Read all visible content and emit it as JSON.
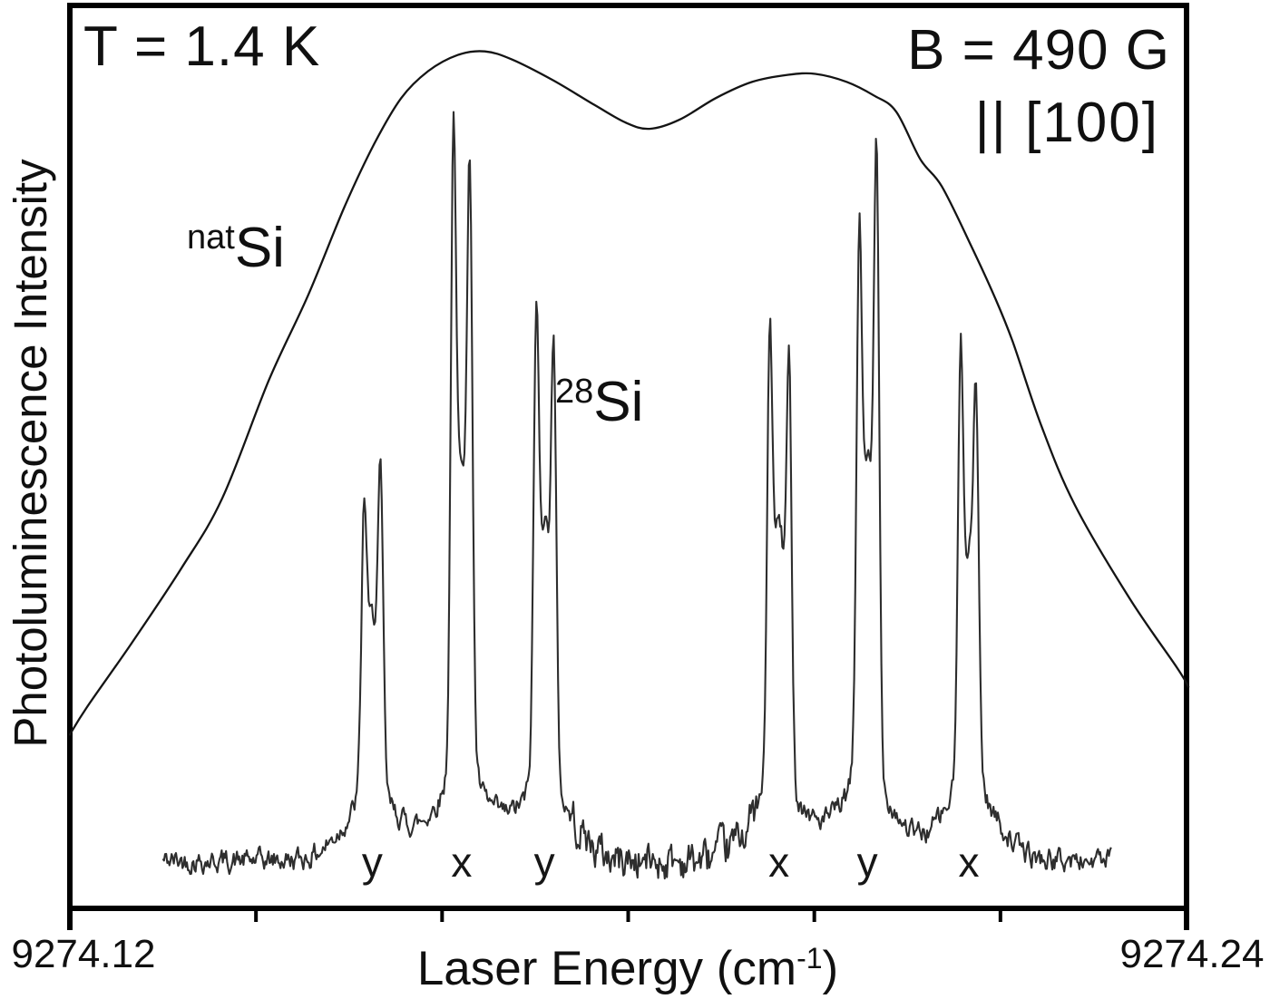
{
  "figure": {
    "temperature_label": "T = 1.4 K",
    "field_label": "B = 490 G",
    "orientation_label": "|| [100]",
    "nat_si_label": {
      "sup": "nat",
      "base": "Si"
    },
    "si28_label": {
      "sup": "28",
      "base": "Si"
    },
    "y_axis_label": "Photoluminescence Intensity",
    "x_axis_label": {
      "pre": "Laser Energy (cm",
      "sup": "-1",
      "post": ")"
    },
    "x_tick_left": "9274.12",
    "x_tick_right": "9274.24"
  },
  "colors": {
    "frame": "#000000",
    "smooth_curve": "#141414",
    "noisy_curve": "#2e2e2e",
    "text": "#101010"
  },
  "chart_data": {
    "type": "line",
    "title": "",
    "xlabel": "Laser Energy (cm-1)",
    "ylabel": "Photoluminescence Intensity",
    "x_range": [
      9274.12,
      9274.24
    ],
    "y_range_arbitrary_units": [
      0,
      1
    ],
    "x_tick_labels": [
      "9274.12",
      "9274.24"
    ],
    "minor_ticks": [
      9274.14,
      9274.16,
      9274.18,
      9274.2,
      9274.22
    ],
    "grid": false,
    "legend": "none",
    "annotations": [
      "T = 1.4 K",
      "B = 490 G",
      "|| [100]",
      "natSi",
      "28Si"
    ],
    "peak_labels": [
      {
        "text": "y",
        "energy": 9274.1525
      },
      {
        "text": "x",
        "energy": 9274.1621
      },
      {
        "text": "y",
        "energy": 9274.171
      },
      {
        "text": "x",
        "energy": 9274.1962
      },
      {
        "text": "y",
        "energy": 9274.2057
      },
      {
        "text": "x",
        "energy": 9274.2166
      }
    ],
    "series": [
      {
        "name": "natSi",
        "style": "smooth-broad-doublehump",
        "points": [
          [
            9274.12,
            0.193
          ],
          [
            9274.1218,
            0.223
          ],
          [
            9274.1266,
            0.294
          ],
          [
            9274.132,
            0.378
          ],
          [
            9274.1364,
            0.456
          ],
          [
            9274.1414,
            0.587
          ],
          [
            9274.1456,
            0.681
          ],
          [
            9274.1495,
            0.779
          ],
          [
            9274.1527,
            0.849
          ],
          [
            9274.1556,
            0.9
          ],
          [
            9274.1585,
            0.93
          ],
          [
            9274.1617,
            0.948
          ],
          [
            9274.1646,
            0.952
          ],
          [
            9274.1675,
            0.943
          ],
          [
            9274.1719,
            0.92
          ],
          [
            9274.1763,
            0.893
          ],
          [
            9274.1797,
            0.873
          ],
          [
            9274.1823,
            0.866
          ],
          [
            9274.1855,
            0.876
          ],
          [
            9274.1894,
            0.9
          ],
          [
            9274.1933,
            0.918
          ],
          [
            9274.1972,
            0.926
          ],
          [
            9274.2001,
            0.927
          ],
          [
            9274.2035,
            0.918
          ],
          [
            9274.2064,
            0.903
          ],
          [
            9274.2088,
            0.885
          ],
          [
            9274.2114,
            0.832
          ],
          [
            9274.2137,
            0.802
          ],
          [
            9274.2169,
            0.735
          ],
          [
            9274.2193,
            0.681
          ],
          [
            9274.2213,
            0.63
          ],
          [
            9274.2244,
            0.536
          ],
          [
            9274.228,
            0.448
          ],
          [
            9274.2339,
            0.344
          ],
          [
            9274.239,
            0.267
          ],
          [
            9274.2402,
            0.246
          ]
        ]
      },
      {
        "name": "28Si",
        "style": "noisy-spectrum",
        "seed": 42,
        "x_start": 9274.13,
        "x_end": 9274.232,
        "baseline": 0.053,
        "noise_amp": 0.012,
        "noise_amp_mid": 0.021,
        "mid_range": [
          9274.174,
          9274.194
        ],
        "groups": [
          {
            "label": "y",
            "center": 9274.1525,
            "mound": 0.07,
            "core": 0.2,
            "spikes": [
              {
                "e": 9274.1516,
                "h": 0.25
              },
              {
                "e": 9274.1534,
                "h": 0.28
              }
            ]
          },
          {
            "label": "x",
            "center": 9274.1621,
            "mound": 0.09,
            "core": 0.36,
            "spikes": [
              {
                "e": 9274.1612,
                "h": 0.58
              },
              {
                "e": 9274.163,
                "h": 0.54
              }
            ]
          },
          {
            "label": "y",
            "center": 9274.171,
            "mound": 0.08,
            "core": 0.3,
            "spikes": [
              {
                "e": 9274.1701,
                "h": 0.41
              },
              {
                "e": 9274.172,
                "h": 0.4
              }
            ]
          },
          {
            "label": "x",
            "center": 9274.1962,
            "mound": 0.08,
            "core": 0.3,
            "spikes": [
              {
                "e": 9274.1952,
                "h": 0.42
              },
              {
                "e": 9274.1973,
                "h": 0.4
              }
            ]
          },
          {
            "label": "y",
            "center": 9274.2057,
            "mound": 0.09,
            "core": 0.36,
            "spikes": [
              {
                "e": 9274.2048,
                "h": 0.47
              },
              {
                "e": 9274.2067,
                "h": 0.59
              }
            ]
          },
          {
            "label": "x",
            "center": 9274.2166,
            "mound": 0.08,
            "core": 0.27,
            "spikes": [
              {
                "e": 9274.2157,
                "h": 0.38
              },
              {
                "e": 9274.2174,
                "h": 0.31
              }
            ]
          }
        ]
      }
    ]
  }
}
